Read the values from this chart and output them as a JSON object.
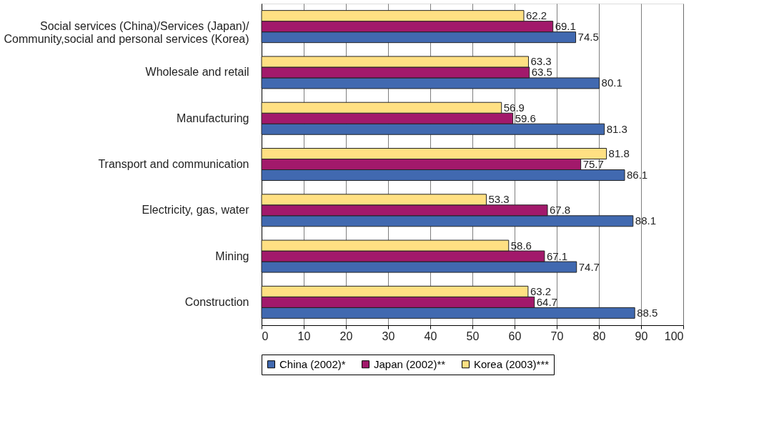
{
  "chart_data": {
    "type": "bar",
    "orientation": "horizontal",
    "categories": [
      "Social services (China)/Services (Japan)/\nCommunity,social and personal services (Korea)",
      "Wholesale and retail",
      "Manufacturing",
      "Transport and communication",
      "Electricity, gas, water",
      "Mining",
      "Construction"
    ],
    "series": [
      {
        "name": "China (2002)*",
        "color": "#4169b0",
        "values": [
          74.5,
          80.1,
          81.3,
          86.1,
          88.1,
          74.7,
          88.5
        ]
      },
      {
        "name": "Japan (2002)**",
        "color": "#a2196b",
        "values": [
          69.1,
          63.5,
          59.6,
          75.7,
          67.8,
          67.1,
          64.7
        ]
      },
      {
        "name": "Korea (2003)***",
        "color": "#ffe083",
        "values": [
          62.2,
          63.3,
          56.9,
          81.8,
          53.3,
          58.6,
          63.2
        ]
      }
    ],
    "xlim": [
      0,
      100
    ],
    "xticks": [
      0,
      10,
      20,
      30,
      40,
      50,
      60,
      70,
      80,
      90,
      100
    ],
    "grid": "x",
    "legend": "bottom",
    "data_labels": true
  }
}
